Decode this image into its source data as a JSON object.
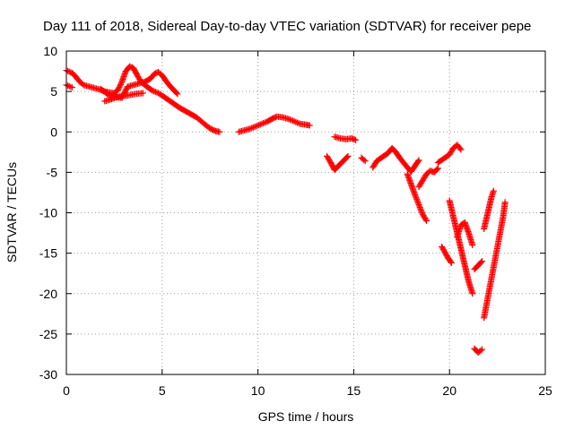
{
  "chart_data": {
    "type": "scatter",
    "title": "Day 111 of 2018, Sidereal Day-to-day VTEC variation (SDTVAR) for receiver pepe",
    "xlabel": "GPS time / hours",
    "ylabel": "SDTVAR / TECUs",
    "xlim": [
      0,
      25
    ],
    "ylim": [
      -30,
      10
    ],
    "xticks": [
      0,
      5,
      10,
      15,
      20,
      25
    ],
    "yticks": [
      10,
      5,
      0,
      -5,
      -10,
      -15,
      -20,
      -25,
      -30
    ],
    "grid": true,
    "marker": "+",
    "color": "#ff0000",
    "series": [
      {
        "name": "SDTVAR",
        "segments": [
          [
            [
              0.0,
              5.8
            ],
            [
              0.3,
              5.5
            ]
          ],
          [
            [
              0.0,
              7.6
            ],
            [
              0.3,
              7.3
            ],
            [
              0.5,
              6.8
            ],
            [
              0.7,
              6.2
            ],
            [
              0.9,
              5.8
            ],
            [
              1.2,
              5.6
            ],
            [
              1.5,
              5.4
            ],
            [
              1.8,
              5.2
            ],
            [
              2.0,
              5.0
            ],
            [
              2.2,
              4.9
            ],
            [
              2.5,
              4.8
            ],
            [
              2.7,
              5.2
            ],
            [
              2.9,
              6.2
            ],
            [
              3.1,
              7.5
            ],
            [
              3.3,
              8.1
            ],
            [
              3.5,
              7.9
            ],
            [
              3.7,
              7.0
            ],
            [
              3.9,
              6.2
            ],
            [
              4.2,
              5.6
            ],
            [
              4.5,
              5.1
            ],
            [
              4.8,
              4.8
            ],
            [
              5.0,
              4.5
            ],
            [
              5.3,
              4.0
            ],
            [
              5.6,
              3.5
            ],
            [
              5.9,
              3.0
            ],
            [
              6.2,
              2.6
            ],
            [
              6.5,
              2.2
            ],
            [
              6.8,
              1.8
            ],
            [
              7.0,
              1.4
            ],
            [
              7.2,
              1.0
            ],
            [
              7.4,
              0.6
            ],
            [
              7.6,
              0.3
            ],
            [
              7.8,
              0.1
            ],
            [
              8.0,
              0.0
            ]
          ],
          [
            [
              1.8,
              5.3
            ],
            [
              2.2,
              4.6
            ],
            [
              2.6,
              4.3
            ],
            [
              2.9,
              4.2
            ],
            [
              3.2,
              5.6
            ],
            [
              3.5,
              5.8
            ],
            [
              3.8,
              6.0
            ],
            [
              4.1,
              6.2
            ],
            [
              4.4,
              6.6
            ],
            [
              4.6,
              7.2
            ],
            [
              4.8,
              7.4
            ],
            [
              5.0,
              7.0
            ],
            [
              5.2,
              6.3
            ],
            [
              5.4,
              5.7
            ],
            [
              5.6,
              5.2
            ],
            [
              5.8,
              4.7
            ]
          ],
          [
            [
              2.0,
              3.8
            ],
            [
              2.3,
              4.0
            ],
            [
              2.5,
              4.2
            ],
            [
              2.8,
              4.4
            ],
            [
              3.2,
              4.5
            ],
            [
              3.6,
              4.7
            ],
            [
              4.0,
              4.8
            ]
          ],
          [
            [
              9.0,
              0.0
            ],
            [
              9.3,
              0.2
            ],
            [
              9.6,
              0.4
            ],
            [
              9.9,
              0.7
            ],
            [
              10.2,
              1.0
            ],
            [
              10.5,
              1.3
            ],
            [
              10.8,
              1.7
            ],
            [
              11.0,
              1.9
            ],
            [
              11.3,
              1.8
            ],
            [
              11.6,
              1.6
            ],
            [
              11.9,
              1.3
            ],
            [
              12.2,
              1.0
            ],
            [
              12.5,
              0.9
            ],
            [
              12.7,
              0.8
            ]
          ],
          [
            [
              13.6,
              -3.0
            ],
            [
              13.8,
              -3.8
            ],
            [
              14.0,
              -4.7
            ],
            [
              14.2,
              -4.2
            ],
            [
              14.5,
              -3.5
            ],
            [
              14.7,
              -3.0
            ]
          ],
          [
            [
              14.0,
              -0.6
            ],
            [
              14.3,
              -0.8
            ],
            [
              14.6,
              -0.9
            ],
            [
              14.9,
              -0.8
            ],
            [
              15.1,
              -1.0
            ]
          ],
          [
            [
              15.4,
              -3.2
            ],
            [
              15.6,
              -3.6
            ]
          ],
          [
            [
              16.0,
              -4.4
            ],
            [
              16.2,
              -3.6
            ],
            [
              16.5,
              -3.1
            ],
            [
              16.8,
              -2.6
            ],
            [
              17.0,
              -2.0
            ],
            [
              17.2,
              -2.5
            ],
            [
              17.4,
              -3.2
            ],
            [
              17.6,
              -3.8
            ],
            [
              17.8,
              -4.4
            ],
            [
              18.0,
              -4.9
            ],
            [
              18.2,
              -4.2
            ],
            [
              18.4,
              -3.5
            ]
          ],
          [
            [
              17.8,
              -5.2
            ],
            [
              18.0,
              -6.5
            ],
            [
              18.2,
              -7.8
            ],
            [
              18.4,
              -9.0
            ],
            [
              18.6,
              -10.2
            ],
            [
              18.8,
              -11.0
            ]
          ],
          [
            [
              18.4,
              -6.8
            ],
            [
              18.6,
              -6.0
            ],
            [
              18.8,
              -5.2
            ],
            [
              19.0,
              -4.8
            ],
            [
              19.2,
              -5.0
            ],
            [
              19.4,
              -4.5
            ]
          ],
          [
            [
              19.4,
              -3.8
            ],
            [
              19.7,
              -3.3
            ],
            [
              20.0,
              -2.8
            ],
            [
              20.2,
              -2.0
            ],
            [
              20.4,
              -1.6
            ],
            [
              20.6,
              -2.2
            ]
          ],
          [
            [
              19.6,
              -14.2
            ],
            [
              19.9,
              -15.5
            ],
            [
              20.1,
              -16.2
            ]
          ],
          [
            [
              20.0,
              -8.5
            ],
            [
              20.2,
              -10.5
            ],
            [
              20.4,
              -12.5
            ],
            [
              20.6,
              -14.5
            ],
            [
              20.8,
              -16.5
            ],
            [
              21.0,
              -18.5
            ],
            [
              21.2,
              -20.0
            ]
          ],
          [
            [
              20.4,
              -13.0
            ],
            [
              20.6,
              -11.5
            ],
            [
              20.8,
              -11.2
            ],
            [
              21.0,
              -12.5
            ],
            [
              21.2,
              -14.0
            ]
          ],
          [
            [
              21.3,
              -17.0
            ],
            [
              21.5,
              -16.5
            ],
            [
              21.7,
              -16.0
            ]
          ],
          [
            [
              21.3,
              -26.8
            ],
            [
              21.5,
              -27.3
            ],
            [
              21.7,
              -26.9
            ]
          ],
          [
            [
              21.8,
              -12.0
            ],
            [
              22.0,
              -10.0
            ],
            [
              22.2,
              -8.0
            ],
            [
              22.3,
              -7.3
            ]
          ],
          [
            [
              21.8,
              -23.0
            ],
            [
              22.0,
              -20.5
            ],
            [
              22.2,
              -18.0
            ],
            [
              22.4,
              -15.5
            ],
            [
              22.6,
              -13.0
            ],
            [
              22.8,
              -10.5
            ],
            [
              22.9,
              -8.7
            ]
          ]
        ]
      }
    ]
  }
}
